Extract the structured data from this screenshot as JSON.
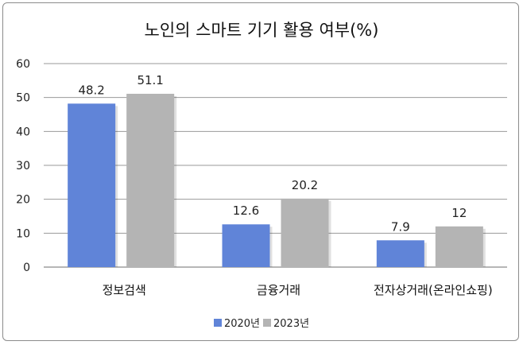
{
  "chart_data": {
    "type": "bar",
    "title": "노인의 스마트 기기 활용 여부(%)",
    "categories": [
      "정보검색",
      "금융거래",
      "전자상거래(온라인쇼핑)"
    ],
    "series": [
      {
        "name": "2020년",
        "values": [
          48.2,
          12.6,
          7.9
        ],
        "color": "#6084D8"
      },
      {
        "name": "2023년",
        "values": [
          51.1,
          20.2,
          12
        ],
        "color": "#B4B4B4"
      }
    ],
    "data_labels": [
      [
        "48.2",
        "12.6",
        "7.9"
      ],
      [
        "51.1",
        "20.2",
        "12"
      ]
    ],
    "ylim": [
      0,
      60
    ],
    "yticks": [
      0,
      10,
      20,
      30,
      40,
      50,
      60
    ],
    "grid": true,
    "legend_position": "bottom"
  }
}
